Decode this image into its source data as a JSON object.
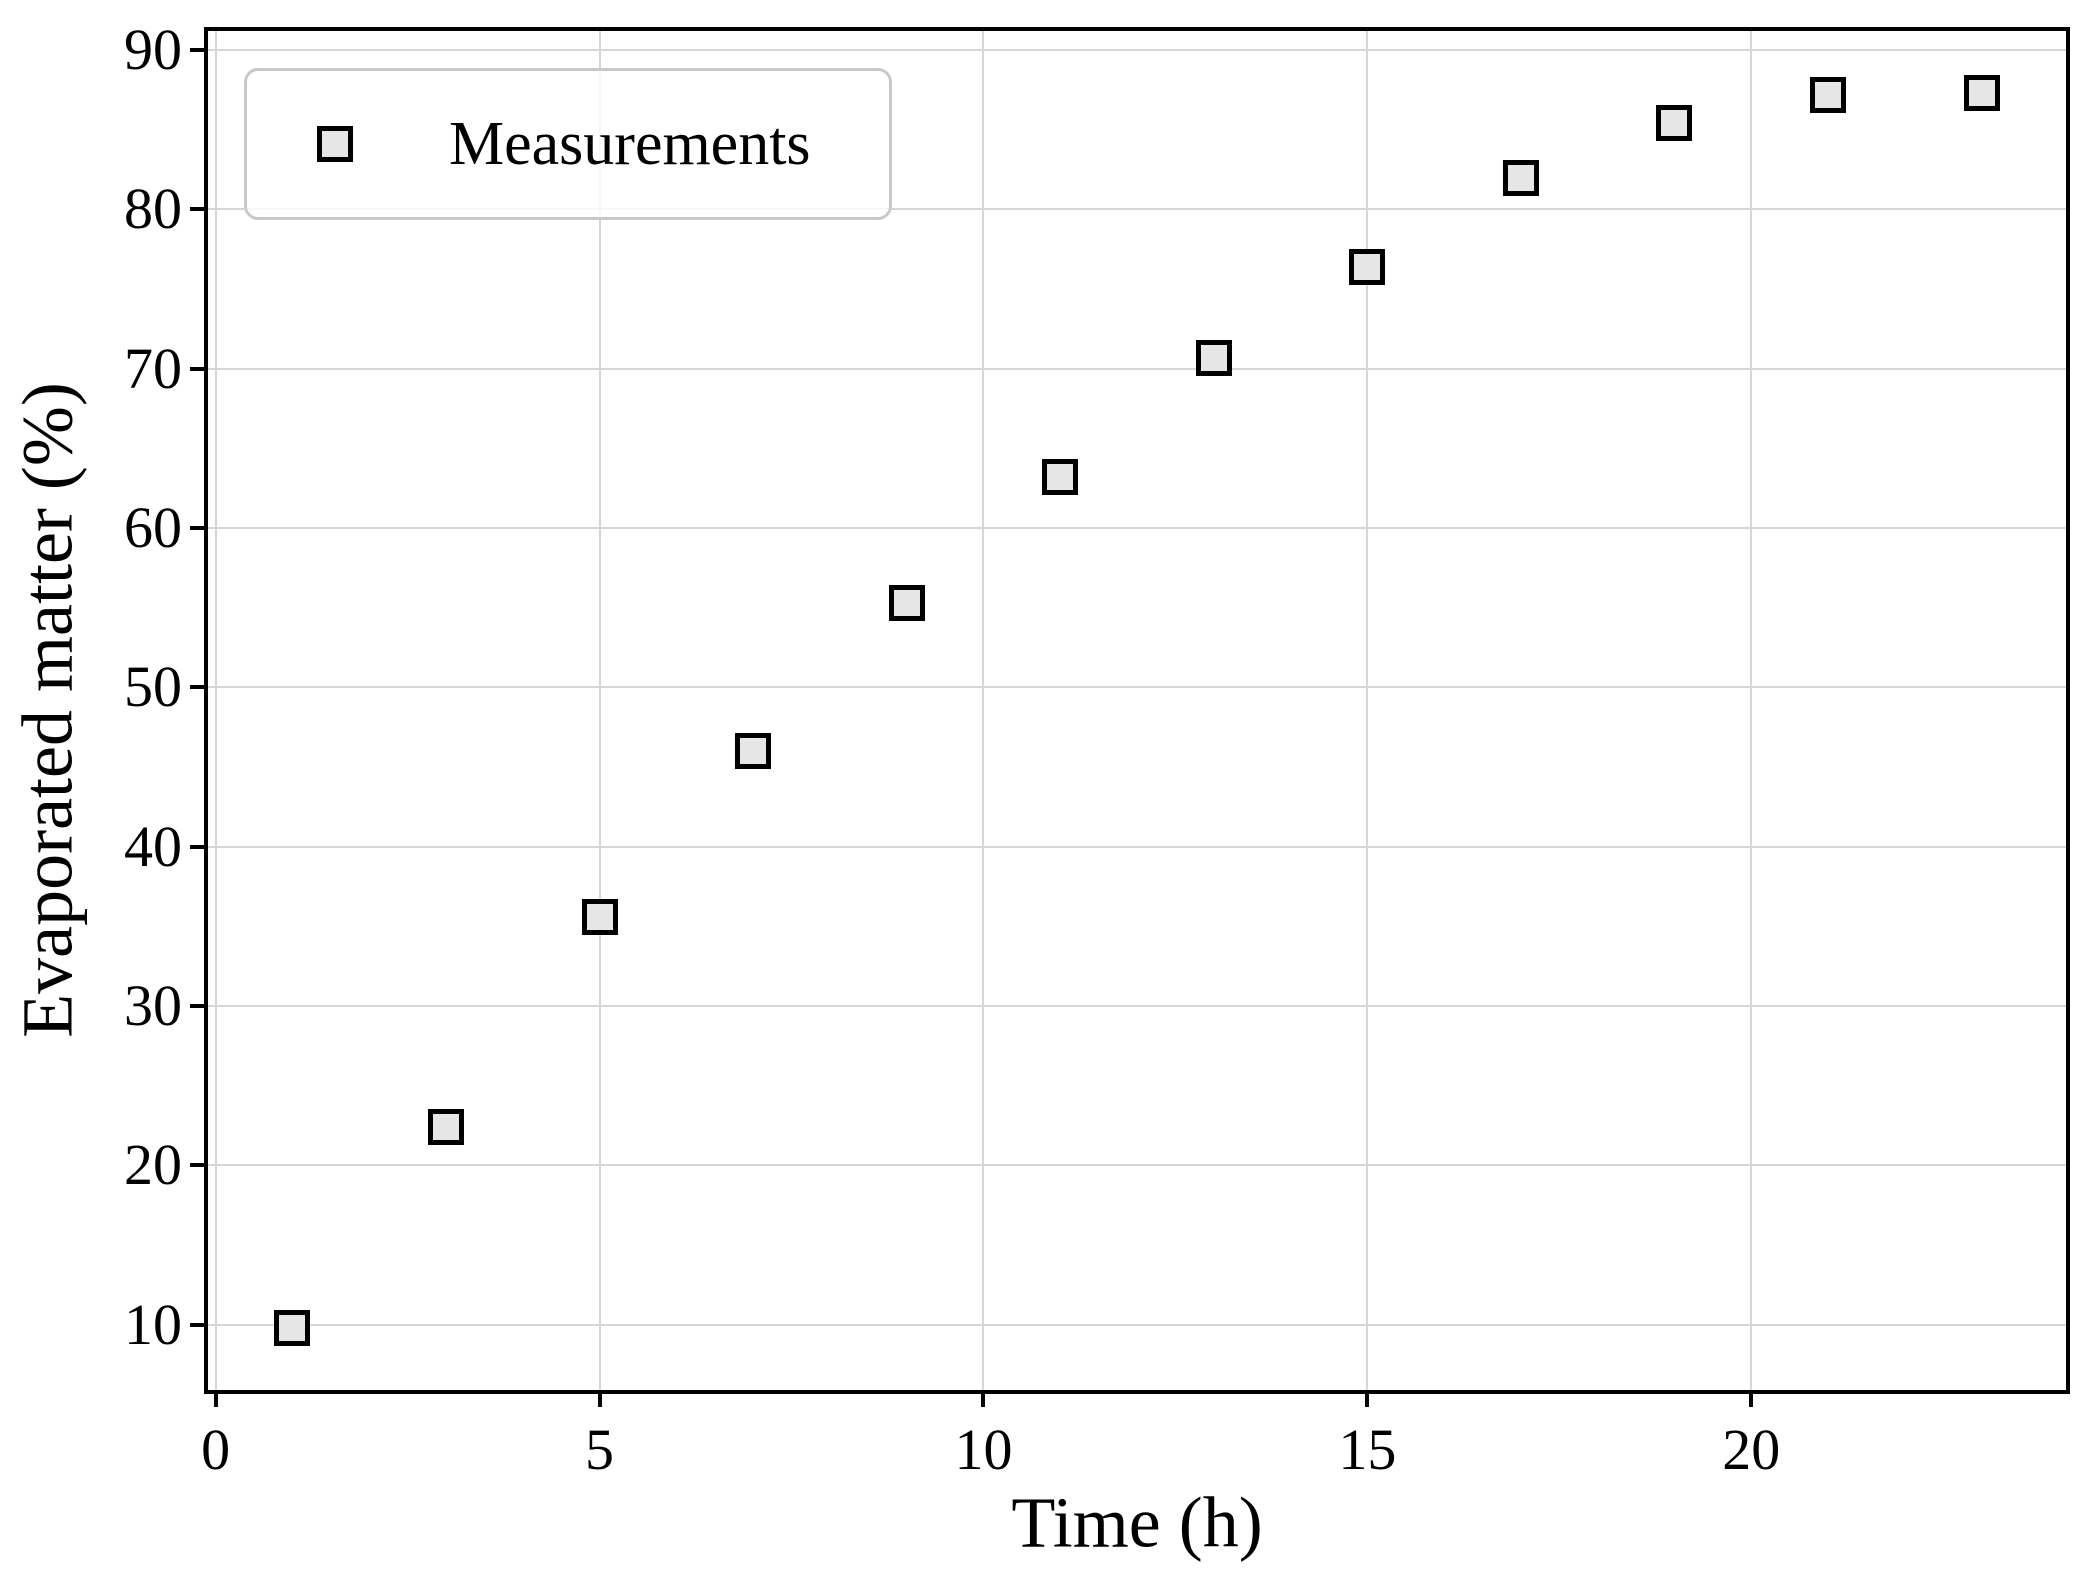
{
  "chart_data": {
    "type": "scatter",
    "title": "",
    "xlabel": "Time (h)",
    "ylabel": "Evaporated matter (%)",
    "grid": true,
    "legend_position": "upper left",
    "xlim": [
      -0.1,
      24.1
    ],
    "ylim": [
      5.9,
      91.2
    ],
    "xticks": [
      0,
      5,
      10,
      15,
      20
    ],
    "yticks": [
      10,
      20,
      30,
      40,
      50,
      60,
      70,
      80,
      90
    ],
    "series": [
      {
        "name": "Measurements",
        "marker": "square",
        "points": [
          [
            1,
            9.8
          ],
          [
            3,
            22.4
          ],
          [
            5,
            35.6
          ],
          [
            7,
            46.0
          ],
          [
            9,
            55.3
          ],
          [
            11,
            63.2
          ],
          [
            13,
            70.7
          ],
          [
            15,
            76.4
          ],
          [
            17,
            82.0
          ],
          [
            19,
            85.4
          ],
          [
            21,
            87.2
          ],
          [
            23,
            87.3
          ]
        ]
      }
    ]
  },
  "colors": {
    "background": "#ffffff",
    "text": "#000000",
    "spine": "#000000",
    "grid": "#d6d6d6",
    "marker_fill": "#e6e6e6",
    "marker_edge": "#000000",
    "legend_border": "#c9c9c9"
  }
}
